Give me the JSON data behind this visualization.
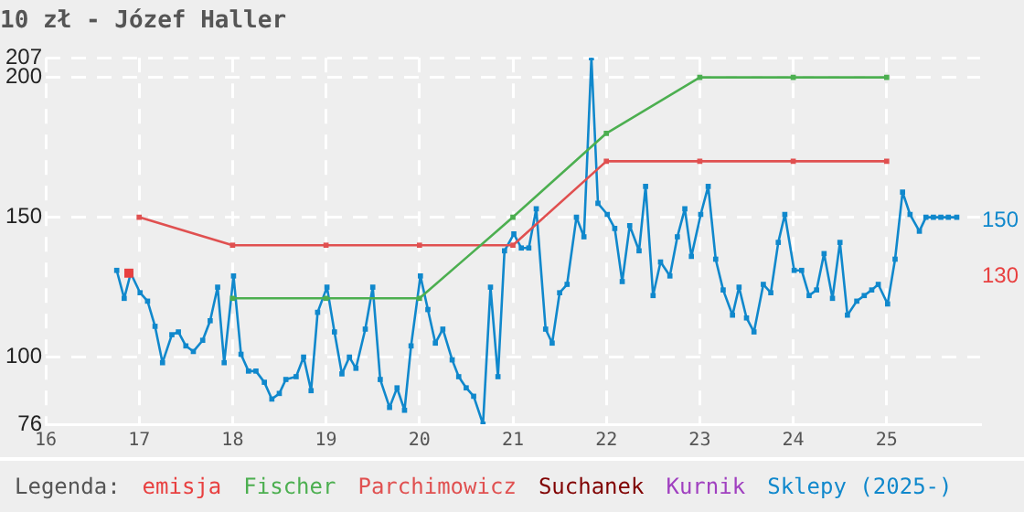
{
  "chart_data": {
    "type": "line",
    "title": "10 zł - Józef Haller",
    "legend_title": "Legenda:",
    "xlim": [
      16,
      26
    ],
    "xticks": [
      16,
      17,
      18,
      19,
      20,
      21,
      22,
      23,
      24,
      25
    ],
    "ylim": [
      76,
      207
    ],
    "yticks": [
      76,
      100,
      150,
      200,
      207
    ],
    "grid": true,
    "legend": "bottom",
    "marker": "square",
    "line_style": "solid",
    "annotations": [
      "150",
      "130"
    ],
    "series": [
      {
        "name": "emisja",
        "type": "scatter",
        "color": "#e84040",
        "x": [
          16.89
        ],
        "values": [
          130
        ]
      },
      {
        "name": "Fischer",
        "color": "#4caf50",
        "x": [
          18,
          19,
          20,
          21,
          22,
          23,
          24,
          25
        ],
        "values": [
          121,
          121,
          121,
          150,
          180,
          200,
          200,
          200
        ]
      },
      {
        "name": "Parchimowicz",
        "color": "#e05050",
        "x": [
          17,
          18,
          19,
          20,
          21,
          22,
          23,
          24,
          25
        ],
        "values": [
          150,
          140,
          140,
          140,
          140,
          170,
          170,
          170,
          170
        ]
      },
      {
        "name": "Suchanek",
        "color": "#800000"
      },
      {
        "name": "Kurnik",
        "color": "#a040c0"
      },
      {
        "name": "Sklepy (2025-)",
        "color": "#1088cc",
        "x": [
          16.76,
          16.84,
          16.91,
          17.01,
          17.09,
          17.17,
          17.25,
          17.35,
          17.42,
          17.5,
          17.58,
          17.68,
          17.76,
          17.84,
          17.91,
          18.01,
          18.09,
          18.17,
          18.25,
          18.34,
          18.42,
          18.5,
          18.57,
          18.68,
          18.76,
          18.84,
          18.91,
          19.01,
          19.09,
          19.17,
          19.25,
          19.32,
          19.42,
          19.5,
          19.58,
          19.68,
          19.76,
          19.84,
          19.91,
          20.01,
          20.09,
          20.17,
          20.25,
          20.35,
          20.42,
          20.5,
          20.58,
          20.68,
          20.76,
          20.84,
          20.91,
          21.01,
          21.09,
          21.17,
          21.25,
          21.35,
          21.42,
          21.5,
          21.58,
          21.68,
          21.76,
          21.84,
          21.91,
          22.01,
          22.09,
          22.17,
          22.25,
          22.35,
          22.42,
          22.5,
          22.58,
          22.68,
          22.76,
          22.84,
          22.91,
          23.01,
          23.09,
          23.17,
          23.25,
          23.35,
          23.42,
          23.5,
          23.58,
          23.68,
          23.76,
          23.84,
          23.91,
          24.01,
          24.09,
          24.17,
          24.25,
          24.33,
          24.42,
          24.5,
          24.58,
          24.68,
          24.76,
          24.84,
          24.91,
          25.01,
          25.09,
          25.17,
          25.25,
          25.35,
          25.42,
          25.5,
          25.58,
          25.66,
          25.75
        ],
        "values": [
          131,
          121,
          130,
          123,
          120,
          111,
          98,
          108,
          109,
          104,
          102,
          106,
          113,
          125,
          98,
          129,
          101,
          95,
          95,
          91,
          85,
          87,
          92,
          93,
          100,
          88,
          116,
          125,
          109,
          94,
          100,
          96,
          110,
          125,
          92,
          82,
          89,
          81,
          104,
          129,
          117,
          105,
          110,
          99,
          93,
          89,
          86,
          76,
          125,
          93,
          138,
          144,
          139,
          139,
          153,
          110,
          105,
          123,
          126,
          150,
          143,
          207,
          155,
          151,
          146,
          127,
          147,
          138,
          161,
          122,
          134,
          129,
          143,
          153,
          136,
          151,
          161,
          135,
          124,
          115,
          125,
          114,
          109,
          126,
          123,
          141,
          151,
          131,
          131,
          122,
          124,
          137,
          121,
          141,
          115,
          120,
          122,
          124,
          126,
          119,
          135,
          159,
          151,
          145,
          150,
          150,
          150,
          150,
          150
        ]
      }
    ]
  }
}
